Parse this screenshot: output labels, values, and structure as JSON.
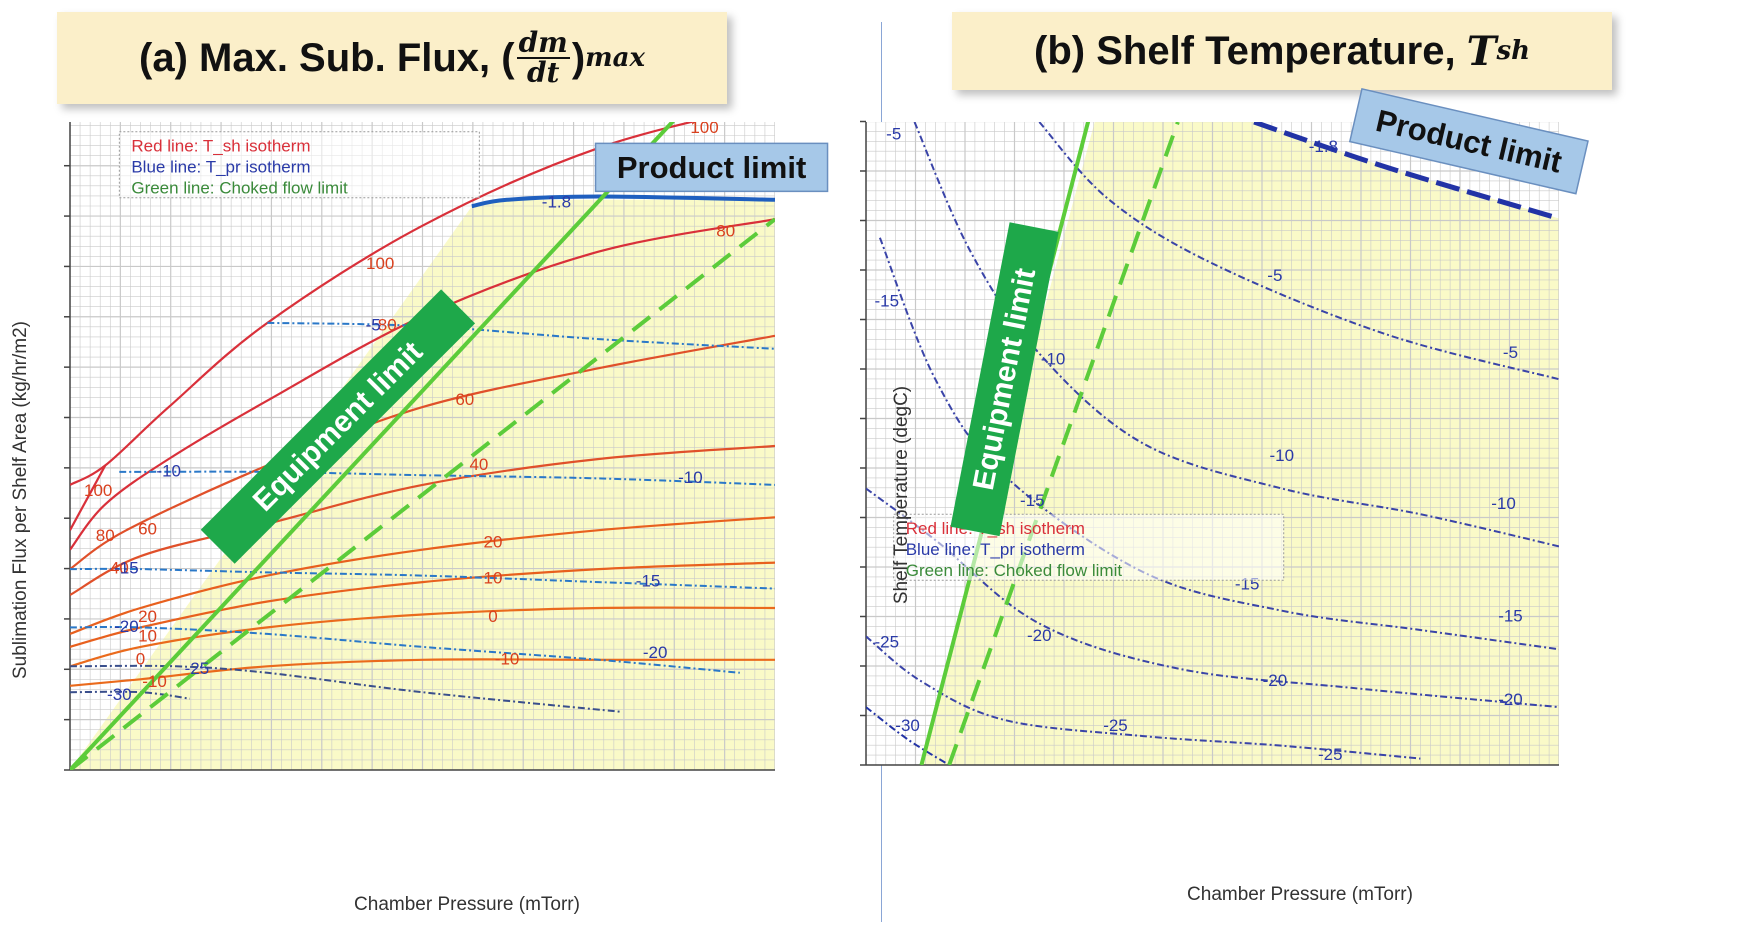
{
  "chart_data": [
    {
      "type": "contour",
      "title": {
        "prefix": "(a) Max. Sub. Flux, (",
        "frac_num": "dm",
        "frac_den": "dt",
        "suffix": ")",
        "sub": "max"
      },
      "xlabel": "Chamber Pressure (mTorr)",
      "ylabel": "Sublimation Flux per Shelf Area (kg/hr/m2)",
      "grid": true,
      "legend_position": "top-left",
      "legend": [
        "Red line: T_sh isotherm",
        "Blue line: T_pr isotherm",
        "Green line: Choked flow limit"
      ],
      "annotations": [
        "Product limit",
        "Equipment limit"
      ],
      "tsh_isotherms": [
        {
          "label": "100",
          "color": "#d9303a",
          "points": [
            [
              0.0,
              0.44
            ],
            [
              0.05,
              0.47
            ],
            [
              0.14,
              0.56
            ],
            [
              0.28,
              0.69
            ],
            [
              0.5,
              0.84
            ],
            [
              0.75,
              0.96
            ],
            [
              1.0,
              1.03
            ]
          ]
        },
        {
          "label": "100",
          "color": "#d9303a",
          "points": [
            [
              0.0,
              0.37
            ],
            [
              0.05,
              0.47
            ]
          ]
        },
        {
          "label": "80",
          "color": "#d9303a",
          "points": [
            [
              0.0,
              0.34
            ],
            [
              0.05,
              0.41
            ],
            [
              0.14,
              0.48
            ],
            [
              0.28,
              0.57
            ],
            [
              0.5,
              0.7
            ],
            [
              0.75,
              0.8
            ],
            [
              1.0,
              0.85
            ]
          ]
        },
        {
          "label": "60",
          "color": "#e0502a",
          "points": [
            [
              0.0,
              0.31
            ],
            [
              0.08,
              0.37
            ],
            [
              0.28,
              0.47
            ],
            [
              0.5,
              0.56
            ],
            [
              0.75,
              0.62
            ],
            [
              1.0,
              0.67
            ]
          ]
        },
        {
          "label": "40",
          "color": "#e0502a",
          "points": [
            [
              0.0,
              0.27
            ],
            [
              0.1,
              0.33
            ],
            [
              0.28,
              0.38
            ],
            [
              0.5,
              0.44
            ],
            [
              0.75,
              0.48
            ],
            [
              1.0,
              0.5
            ]
          ]
        },
        {
          "label": "20",
          "color": "#e8601e",
          "points": [
            [
              0.0,
              0.21
            ],
            [
              0.1,
              0.25
            ],
            [
              0.28,
              0.3
            ],
            [
              0.5,
              0.34
            ],
            [
              0.75,
              0.37
            ],
            [
              1.0,
              0.39
            ]
          ]
        },
        {
          "label": "10",
          "color": "#e8601e",
          "points": [
            [
              0.0,
              0.19
            ],
            [
              0.1,
              0.22
            ],
            [
              0.28,
              0.26
            ],
            [
              0.5,
              0.29
            ],
            [
              0.75,
              0.31
            ],
            [
              1.0,
              0.32
            ]
          ]
        },
        {
          "label": "0",
          "color": "#ea6a1c",
          "points": [
            [
              0.0,
              0.16
            ],
            [
              0.1,
              0.19
            ],
            [
              0.28,
              0.22
            ],
            [
              0.5,
              0.24
            ],
            [
              0.75,
              0.25
            ],
            [
              1.0,
              0.25
            ]
          ]
        },
        {
          "label": "-10",
          "color": "#ea6a1c",
          "points": [
            [
              0.0,
              0.13
            ],
            [
              0.1,
              0.14
            ],
            [
              0.28,
              0.16
            ],
            [
              0.5,
              0.17
            ],
            [
              0.75,
              0.17
            ],
            [
              1.0,
              0.17
            ]
          ]
        }
      ],
      "tpr_isotherms": [
        {
          "label": "-1.8",
          "color": "#1f5fbf",
          "points": [
            [
              0.57,
              0.87
            ],
            [
              0.62,
              0.88
            ],
            [
              0.75,
              0.885
            ],
            [
              1.0,
              0.88
            ]
          ]
        },
        {
          "label": "-5",
          "color": "#2a78c8",
          "points": [
            [
              0.28,
              0.69
            ],
            [
              0.5,
              0.685
            ],
            [
              0.75,
              0.665
            ],
            [
              1.0,
              0.65
            ]
          ]
        },
        {
          "label": "-10",
          "color": "#2a78c8",
          "points": [
            [
              0.07,
              0.46
            ],
            [
              0.28,
              0.46
            ],
            [
              0.5,
              0.455
            ],
            [
              0.75,
              0.45
            ],
            [
              1.0,
              0.44
            ]
          ]
        },
        {
          "label": "-15",
          "color": "#2a78c8",
          "points": [
            [
              0.0,
              0.31
            ],
            [
              0.1,
              0.31
            ],
            [
              0.28,
              0.305
            ],
            [
              0.5,
              0.3
            ],
            [
              0.75,
              0.29
            ],
            [
              1.0,
              0.28
            ]
          ]
        },
        {
          "label": "-20",
          "color": "#2a78c8",
          "points": [
            [
              0.0,
              0.22
            ],
            [
              0.1,
              0.22
            ],
            [
              0.28,
              0.21
            ],
            [
              0.5,
              0.19
            ],
            [
              0.75,
              0.17
            ],
            [
              0.95,
              0.15
            ]
          ]
        },
        {
          "label": "-25",
          "color": "#3a4f8c",
          "points": [
            [
              0.0,
              0.16
            ],
            [
              0.15,
              0.16
            ],
            [
              0.28,
              0.15
            ],
            [
              0.5,
              0.12
            ],
            [
              0.78,
              0.09
            ]
          ]
        },
        {
          "label": "-30",
          "color": "#3a4f8c",
          "points": [
            [
              0.0,
              0.12
            ],
            [
              0.1,
              0.12
            ],
            [
              0.17,
              0.11
            ]
          ]
        }
      ],
      "tsh_label_positions": [
        {
          "text": "100",
          "x": 0.44,
          "y": 0.78
        },
        {
          "text": "100",
          "x": 0.04,
          "y": 0.43
        },
        {
          "text": "80",
          "x": 0.05,
          "y": 0.36
        },
        {
          "text": "60",
          "x": 0.11,
          "y": 0.37
        },
        {
          "text": "40",
          "x": 0.07,
          "y": 0.31
        },
        {
          "text": "20",
          "x": 0.11,
          "y": 0.235
        },
        {
          "text": "10",
          "x": 0.11,
          "y": 0.205
        },
        {
          "text": "0",
          "x": 0.1,
          "y": 0.17
        },
        {
          "text": "-10",
          "x": 0.12,
          "y": 0.135
        },
        {
          "text": "80",
          "x": 0.45,
          "y": 0.685
        },
        {
          "text": "60",
          "x": 0.56,
          "y": 0.57
        },
        {
          "text": "40",
          "x": 0.58,
          "y": 0.47
        },
        {
          "text": "20",
          "x": 0.6,
          "y": 0.35
        },
        {
          "text": "10",
          "x": 0.6,
          "y": 0.295
        },
        {
          "text": "0",
          "x": 0.6,
          "y": 0.235
        },
        {
          "text": "-10",
          "x": 0.62,
          "y": 0.17
        },
        {
          "text": "100",
          "x": 0.9,
          "y": 0.99
        },
        {
          "text": "80",
          "x": 0.93,
          "y": 0.83
        }
      ],
      "tpr_label_positions": [
        {
          "text": "-1.8",
          "x": 0.69,
          "y": 0.875
        },
        {
          "text": "-5",
          "x": 0.43,
          "y": 0.685
        },
        {
          "text": "-10",
          "x": 0.14,
          "y": 0.46
        },
        {
          "text": "-10",
          "x": 0.88,
          "y": 0.45
        },
        {
          "text": "-15",
          "x": 0.08,
          "y": 0.31
        },
        {
          "text": "-15",
          "x": 0.82,
          "y": 0.29
        },
        {
          "text": "-20",
          "x": 0.08,
          "y": 0.22
        },
        {
          "text": "-20",
          "x": 0.83,
          "y": 0.18
        },
        {
          "text": "-25",
          "x": 0.18,
          "y": 0.155
        },
        {
          "text": "-30",
          "x": 0.07,
          "y": 0.115
        }
      ]
    },
    {
      "type": "contour",
      "title": {
        "prefix": "(b) Shelf Temperature, ",
        "math": "T",
        "sub": "sh"
      },
      "xlabel": "Chamber Pressure (mTorr)",
      "ylabel": "Shelf Temperature (degC)",
      "grid": true,
      "legend_position": "bottom-left",
      "legend": [
        "Red line: T_sh isotherm",
        "Blue line: T_pr isotherm",
        "Green line: Choked flow limit"
      ],
      "annotations": [
        "Product limit",
        "Equipment limit"
      ],
      "tpr_isotherms": [
        {
          "label": "-1.8",
          "color": "#2233a6",
          "points": [
            [
              0.56,
              1.0
            ],
            [
              0.75,
              0.93
            ],
            [
              1.0,
              0.85
            ]
          ]
        },
        {
          "label": "-5",
          "color": "#3a44a8",
          "points": [
            [
              0.25,
              1.0
            ],
            [
              0.35,
              0.88
            ],
            [
              0.5,
              0.78
            ],
            [
              0.75,
              0.67
            ],
            [
              1.0,
              0.6
            ]
          ]
        },
        {
          "label": "-10",
          "color": "#3a44a8",
          "points": [
            [
              0.07,
              1.0
            ],
            [
              0.15,
              0.8
            ],
            [
              0.25,
              0.64
            ],
            [
              0.4,
              0.5
            ],
            [
              0.6,
              0.43
            ],
            [
              0.8,
              0.39
            ],
            [
              1.0,
              0.34
            ]
          ]
        },
        {
          "label": "-15",
          "color": "#3a44a8",
          "points": [
            [
              0.02,
              0.82
            ],
            [
              0.1,
              0.6
            ],
            [
              0.2,
              0.45
            ],
            [
              0.4,
              0.3
            ],
            [
              0.6,
              0.24
            ],
            [
              0.8,
              0.21
            ],
            [
              1.0,
              0.18
            ]
          ]
        },
        {
          "label": "-20",
          "color": "#3a44a8",
          "points": [
            [
              0.0,
              0.43
            ],
            [
              0.1,
              0.35
            ],
            [
              0.25,
              0.22
            ],
            [
              0.45,
              0.15
            ],
            [
              0.7,
              0.12
            ],
            [
              1.0,
              0.09
            ]
          ]
        },
        {
          "label": "-25",
          "color": "#3a44a8",
          "points": [
            [
              0.0,
              0.2
            ],
            [
              0.08,
              0.13
            ],
            [
              0.2,
              0.07
            ],
            [
              0.4,
              0.045
            ],
            [
              0.6,
              0.03
            ],
            [
              0.8,
              0.01
            ]
          ]
        },
        {
          "label": "-30",
          "color": "#2233a6",
          "points": [
            [
              0.0,
              0.09
            ],
            [
              0.06,
              0.04
            ],
            [
              0.12,
              0.0
            ]
          ]
        }
      ],
      "tpr_label_positions": [
        {
          "text": "-1.8",
          "x": 0.66,
          "y": 0.96
        },
        {
          "text": "-5",
          "x": 0.04,
          "y": 0.98
        },
        {
          "text": "-5",
          "x": 0.59,
          "y": 0.76
        },
        {
          "text": "-5",
          "x": 0.93,
          "y": 0.64
        },
        {
          "text": "-10",
          "x": 0.27,
          "y": 0.63
        },
        {
          "text": "-10",
          "x": 0.6,
          "y": 0.48
        },
        {
          "text": "-10",
          "x": 0.92,
          "y": 0.405
        },
        {
          "text": "-15",
          "x": 0.03,
          "y": 0.72
        },
        {
          "text": "-15",
          "x": 0.24,
          "y": 0.41
        },
        {
          "text": "-15",
          "x": 0.55,
          "y": 0.28
        },
        {
          "text": "-15",
          "x": 0.93,
          "y": 0.23
        },
        {
          "text": "-20",
          "x": 0.25,
          "y": 0.2
        },
        {
          "text": "-20",
          "x": 0.59,
          "y": 0.13
        },
        {
          "text": "-20",
          "x": 0.93,
          "y": 0.1
        },
        {
          "text": "-25",
          "x": 0.03,
          "y": 0.19
        },
        {
          "text": "-25",
          "x": 0.36,
          "y": 0.06
        },
        {
          "text": "-25",
          "x": 0.67,
          "y": 0.015
        },
        {
          "text": "-30",
          "x": 0.06,
          "y": 0.06
        }
      ]
    }
  ],
  "colors": {
    "feasible_region": "#fafac8",
    "grid": "#c9c9c9",
    "choked_flow": "#5ccc3a",
    "equipment_label_bg": "#1ea84a",
    "product_label_bg": "#a6c8e8",
    "title_bg": "#fbefc9"
  }
}
